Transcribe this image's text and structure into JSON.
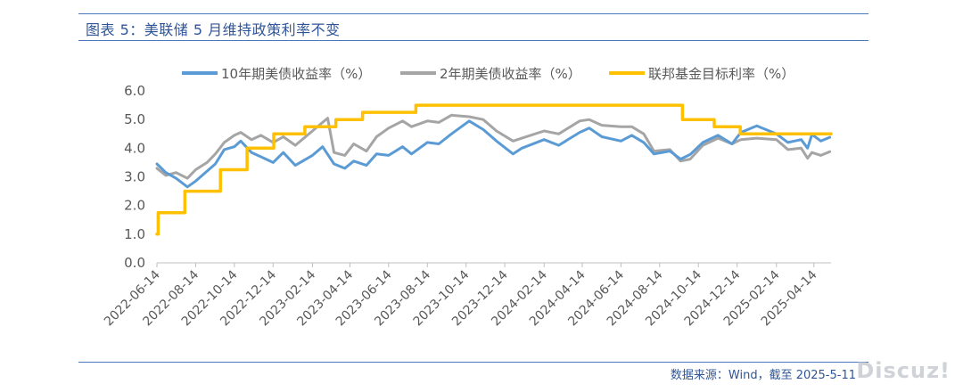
{
  "header": {
    "title": "图表 5：美联储 5 月维持政策利率不变"
  },
  "footer": {
    "source": "数据来源：Wind，截至 2025-5-11",
    "watermark": "Discuz!"
  },
  "colors": {
    "accent": "#2f5597",
    "series10y": "#5b9bd5",
    "series2y": "#a5a5a5",
    "fedfunds": "#ffc000"
  },
  "chart_data": {
    "type": "line",
    "title": "",
    "xlabel": "",
    "ylabel": "",
    "ylim": [
      0,
      6
    ],
    "yticks": [
      "0.0",
      "1.0",
      "2.0",
      "3.0",
      "4.0",
      "5.0",
      "6.0"
    ],
    "xlim": [
      "2022-06-14",
      "2025-05-11"
    ],
    "xticks": [
      "2022-06-14",
      "2022-08-14",
      "2022-10-14",
      "2022-12-14",
      "2023-02-14",
      "2023-04-14",
      "2023-06-14",
      "2023-08-14",
      "2023-10-14",
      "2023-12-14",
      "2024-02-14",
      "2024-04-14",
      "2024-06-14",
      "2024-08-14",
      "2024-10-14",
      "2024-12-14",
      "2025-02-14",
      "2025-04-14"
    ],
    "legend_position": "top",
    "series": [
      {
        "name": "10年期美债收益率（%）",
        "color": "#5b9bd5",
        "step": false,
        "points": [
          [
            "2022-06-14",
            3.45
          ],
          [
            "2022-06-28",
            3.15
          ],
          [
            "2022-07-14",
            2.95
          ],
          [
            "2022-08-01",
            2.65
          ],
          [
            "2022-08-14",
            2.85
          ],
          [
            "2022-09-01",
            3.2
          ],
          [
            "2022-09-14",
            3.45
          ],
          [
            "2022-09-28",
            3.95
          ],
          [
            "2022-10-14",
            4.05
          ],
          [
            "2022-10-24",
            4.25
          ],
          [
            "2022-11-10",
            3.85
          ],
          [
            "2022-11-25",
            3.7
          ],
          [
            "2022-12-14",
            3.5
          ],
          [
            "2022-12-30",
            3.85
          ],
          [
            "2023-01-18",
            3.4
          ],
          [
            "2023-02-14",
            3.75
          ],
          [
            "2023-03-02",
            4.05
          ],
          [
            "2023-03-20",
            3.45
          ],
          [
            "2023-04-06",
            3.3
          ],
          [
            "2023-04-20",
            3.55
          ],
          [
            "2023-05-10",
            3.4
          ],
          [
            "2023-05-26",
            3.8
          ],
          [
            "2023-06-14",
            3.75
          ],
          [
            "2023-07-06",
            4.05
          ],
          [
            "2023-07-20",
            3.8
          ],
          [
            "2023-08-14",
            4.2
          ],
          [
            "2023-09-01",
            4.15
          ],
          [
            "2023-09-21",
            4.5
          ],
          [
            "2023-10-19",
            4.95
          ],
          [
            "2023-11-10",
            4.65
          ],
          [
            "2023-12-01",
            4.25
          ],
          [
            "2023-12-27",
            3.8
          ],
          [
            "2024-01-10",
            4.0
          ],
          [
            "2024-02-14",
            4.3
          ],
          [
            "2024-03-08",
            4.1
          ],
          [
            "2024-04-10",
            4.55
          ],
          [
            "2024-04-25",
            4.7
          ],
          [
            "2024-05-15",
            4.4
          ],
          [
            "2024-06-14",
            4.25
          ],
          [
            "2024-07-01",
            4.45
          ],
          [
            "2024-07-20",
            4.2
          ],
          [
            "2024-08-05",
            3.8
          ],
          [
            "2024-08-30",
            3.9
          ],
          [
            "2024-09-16",
            3.62
          ],
          [
            "2024-10-01",
            3.78
          ],
          [
            "2024-10-21",
            4.2
          ],
          [
            "2024-11-14",
            4.45
          ],
          [
            "2024-12-06",
            4.15
          ],
          [
            "2024-12-20",
            4.55
          ],
          [
            "2025-01-14",
            4.78
          ],
          [
            "2025-02-14",
            4.5
          ],
          [
            "2025-03-04",
            4.2
          ],
          [
            "2025-03-25",
            4.3
          ],
          [
            "2025-04-04",
            4.0
          ],
          [
            "2025-04-11",
            4.48
          ],
          [
            "2025-04-25",
            4.25
          ],
          [
            "2025-05-09",
            4.38
          ]
        ]
      },
      {
        "name": "2年期美债收益率（%）",
        "color": "#a5a5a5",
        "step": false,
        "points": [
          [
            "2022-06-14",
            3.3
          ],
          [
            "2022-06-28",
            3.05
          ],
          [
            "2022-07-14",
            3.15
          ],
          [
            "2022-08-01",
            2.95
          ],
          [
            "2022-08-14",
            3.25
          ],
          [
            "2022-09-01",
            3.5
          ],
          [
            "2022-09-14",
            3.8
          ],
          [
            "2022-09-28",
            4.2
          ],
          [
            "2022-10-14",
            4.45
          ],
          [
            "2022-10-24",
            4.55
          ],
          [
            "2022-11-10",
            4.3
          ],
          [
            "2022-11-25",
            4.45
          ],
          [
            "2022-12-14",
            4.2
          ],
          [
            "2022-12-30",
            4.4
          ],
          [
            "2023-01-18",
            4.1
          ],
          [
            "2023-02-14",
            4.6
          ],
          [
            "2023-03-02",
            4.9
          ],
          [
            "2023-03-10",
            5.05
          ],
          [
            "2023-03-20",
            3.85
          ],
          [
            "2023-04-06",
            3.75
          ],
          [
            "2023-04-20",
            4.15
          ],
          [
            "2023-05-10",
            3.9
          ],
          [
            "2023-05-26",
            4.4
          ],
          [
            "2023-06-14",
            4.7
          ],
          [
            "2023-07-06",
            4.95
          ],
          [
            "2023-07-20",
            4.75
          ],
          [
            "2023-08-14",
            4.95
          ],
          [
            "2023-09-01",
            4.9
          ],
          [
            "2023-09-21",
            5.15
          ],
          [
            "2023-10-19",
            5.1
          ],
          [
            "2023-11-10",
            5.0
          ],
          [
            "2023-12-01",
            4.6
          ],
          [
            "2023-12-27",
            4.25
          ],
          [
            "2024-01-10",
            4.35
          ],
          [
            "2024-02-14",
            4.6
          ],
          [
            "2024-03-08",
            4.5
          ],
          [
            "2024-04-10",
            4.95
          ],
          [
            "2024-04-25",
            5.0
          ],
          [
            "2024-05-15",
            4.8
          ],
          [
            "2024-06-14",
            4.75
          ],
          [
            "2024-07-01",
            4.75
          ],
          [
            "2024-07-20",
            4.5
          ],
          [
            "2024-08-05",
            3.9
          ],
          [
            "2024-08-30",
            3.95
          ],
          [
            "2024-09-16",
            3.55
          ],
          [
            "2024-10-01",
            3.62
          ],
          [
            "2024-10-21",
            4.1
          ],
          [
            "2024-11-14",
            4.35
          ],
          [
            "2024-12-06",
            4.15
          ],
          [
            "2024-12-20",
            4.3
          ],
          [
            "2025-01-14",
            4.35
          ],
          [
            "2025-02-14",
            4.3
          ],
          [
            "2025-03-04",
            3.95
          ],
          [
            "2025-03-25",
            4.0
          ],
          [
            "2025-04-04",
            3.65
          ],
          [
            "2025-04-11",
            3.85
          ],
          [
            "2025-04-25",
            3.75
          ],
          [
            "2025-05-09",
            3.88
          ]
        ]
      },
      {
        "name": "联邦基金目标利率（%）",
        "color": "#ffc000",
        "step": true,
        "points": [
          [
            "2022-06-14",
            1.0
          ],
          [
            "2022-06-16",
            1.75
          ],
          [
            "2022-07-28",
            2.5
          ],
          [
            "2022-09-22",
            3.25
          ],
          [
            "2022-11-03",
            4.0
          ],
          [
            "2022-12-15",
            4.5
          ],
          [
            "2023-02-02",
            4.75
          ],
          [
            "2023-03-23",
            5.0
          ],
          [
            "2023-05-04",
            5.25
          ],
          [
            "2023-07-27",
            5.5
          ],
          [
            "2024-09-19",
            5.0
          ],
          [
            "2024-11-08",
            4.75
          ],
          [
            "2024-12-19",
            4.5
          ],
          [
            "2025-05-11",
            4.5
          ]
        ]
      }
    ]
  }
}
